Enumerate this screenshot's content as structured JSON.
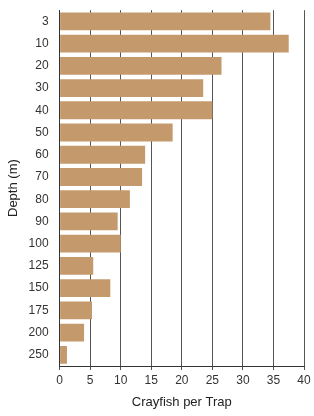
{
  "chart_data": {
    "type": "bar",
    "orientation": "horizontal",
    "categories": [
      "3",
      "10",
      "20",
      "30",
      "40",
      "50",
      "60",
      "70",
      "80",
      "90",
      "100",
      "125",
      "150",
      "175",
      "200",
      "250"
    ],
    "values": [
      34.5,
      37.5,
      26.5,
      23.5,
      25,
      18.5,
      14,
      13.5,
      11.5,
      9.5,
      10,
      5.5,
      8.3,
      5.3,
      4,
      1.2
    ],
    "color": "#c49a6c",
    "x_label": "Crayfish per Trap",
    "y_label": "Depth (m)",
    "xlim": [
      0,
      40
    ],
    "xticks": [
      0,
      5,
      10,
      15,
      20,
      25,
      30,
      35,
      40
    ],
    "grid": true
  }
}
